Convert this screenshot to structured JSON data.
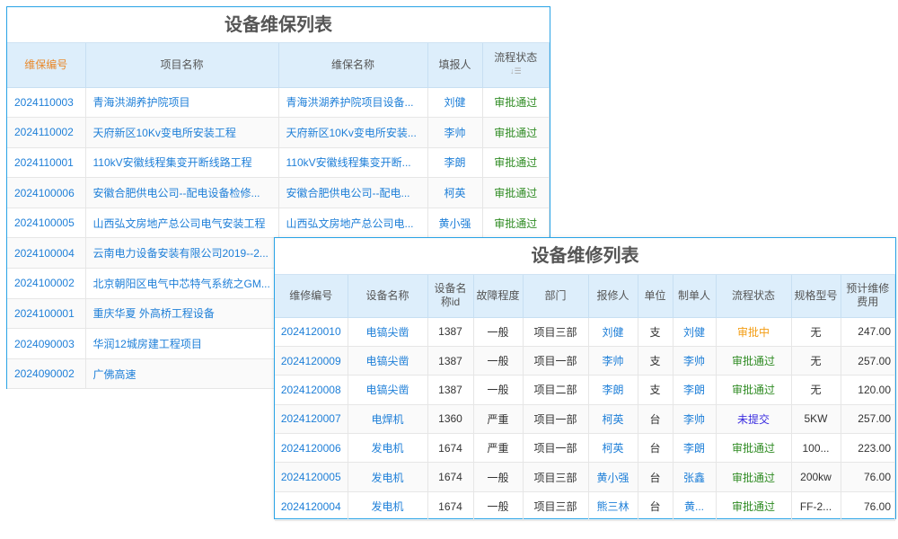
{
  "colors": {
    "approved": "#2e8b22",
    "pending": "#f39c12",
    "unsubmitted": "#3a2ce0",
    "link": "#1e7fd8",
    "border": "#29a3e6"
  },
  "maintenance": {
    "title": "设备维保列表",
    "columns": [
      "维保编号",
      "项目名称",
      "维保名称",
      "填报人",
      "流程状态"
    ],
    "sort_icon": "sort-descending-icon",
    "rows": [
      {
        "id": "2024110003",
        "project": "青海洪湖养护院项目",
        "name": "青海洪湖养护院项目设备...",
        "reporter": "刘健",
        "status": "审批通过"
      },
      {
        "id": "2024110002",
        "project": "天府新区10Kv变电所安装工程",
        "name": "天府新区10Kv变电所安装...",
        "reporter": "李帅",
        "status": "审批通过"
      },
      {
        "id": "2024110001",
        "project": "110kV安徽线程集变开断线路工程",
        "name": "110kV安徽线程集变开断...",
        "reporter": "李朗",
        "status": "审批通过"
      },
      {
        "id": "2024100006",
        "project": "安徽合肥供电公司--配电设备检修...",
        "name": "安徽合肥供电公司--配电...",
        "reporter": "柯英",
        "status": "审批通过"
      },
      {
        "id": "2024100005",
        "project": "山西弘文房地产总公司电气安装工程",
        "name": "山西弘文房地产总公司电...",
        "reporter": "黄小强",
        "status": "审批通过"
      },
      {
        "id": "2024100004",
        "project": "云南电力设备安装有限公司2019--2...",
        "name": "",
        "reporter": "",
        "status": ""
      },
      {
        "id": "2024100002",
        "project": "北京朝阳区电气中芯特气系统之GM...",
        "name": "",
        "reporter": "",
        "status": ""
      },
      {
        "id": "2024100001",
        "project": "重庆华夏 外高桥工程设备",
        "name": "",
        "reporter": "",
        "status": ""
      },
      {
        "id": "2024090003",
        "project": "华润12城房建工程项目",
        "name": "",
        "reporter": "",
        "status": ""
      },
      {
        "id": "2024090002",
        "project": "广佛高速",
        "name": "",
        "reporter": "",
        "status": ""
      }
    ]
  },
  "repair": {
    "title": "设备维修列表",
    "columns": [
      "维修编号",
      "设备名称",
      "设备名称id",
      "故障程度",
      "部门",
      "报修人",
      "单位",
      "制单人",
      "流程状态",
      "规格型号",
      "预计维修费用"
    ],
    "rows": [
      [
        "2024120010",
        "电镐尖凿",
        "1387",
        "一般",
        "项目三部",
        "刘健",
        "支",
        "刘健",
        "审批中",
        "无",
        "247.00"
      ],
      [
        "2024120009",
        "电镐尖凿",
        "1387",
        "一般",
        "项目一部",
        "李帅",
        "支",
        "李帅",
        "审批通过",
        "无",
        "257.00"
      ],
      [
        "2024120008",
        "电镐尖凿",
        "1387",
        "一般",
        "项目二部",
        "李朗",
        "支",
        "李朗",
        "审批通过",
        "无",
        "120.00"
      ],
      [
        "2024120007",
        "电焊机",
        "1360",
        "严重",
        "项目一部",
        "柯英",
        "台",
        "李帅",
        "未提交",
        "5KW",
        "257.00"
      ],
      [
        "2024120006",
        "发电机",
        "1674",
        "严重",
        "项目一部",
        "柯英",
        "台",
        "李朗",
        "审批通过",
        "100...",
        "223.00"
      ],
      [
        "2024120005",
        "发电机",
        "1674",
        "一般",
        "项目三部",
        "黄小强",
        "台",
        "张鑫",
        "审批通过",
        "200kw",
        "76.00"
      ],
      [
        "2024120004",
        "发电机",
        "1674",
        "一般",
        "项目三部",
        "熊三林",
        "台",
        "黄...",
        "审批通过",
        "FF-2...",
        "76.00"
      ]
    ]
  }
}
